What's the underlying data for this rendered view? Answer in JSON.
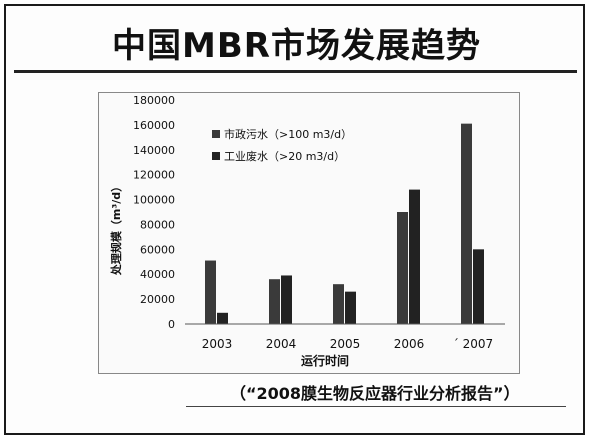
{
  "title": "中国MBR市场发展趋势",
  "source": "（“2008膜生物反应器行业分析报告”）",
  "chart_data": {
    "type": "bar",
    "title": "中国MBR市场发展趋势",
    "xlabel": "运行时间",
    "ylabel": "处理规模（m³/d）",
    "categories": [
      "2003",
      "2004",
      "2005",
      "2006",
      "2007"
    ],
    "category_labels": [
      "2003",
      "2004",
      "2005",
      "2006",
      "ˊ 2007"
    ],
    "ylim": [
      0,
      180000
    ],
    "yticks": [
      0,
      20000,
      40000,
      60000,
      80000,
      100000,
      120000,
      140000,
      160000,
      180000
    ],
    "grid": false,
    "legend": "top-left",
    "series": [
      {
        "name": "市政污水（>100 m3/d）",
        "values": [
          51000,
          36000,
          32000,
          90000,
          161000
        ],
        "color": "#3a3a3a"
      },
      {
        "name": "工业废水（>20 m3/d）",
        "values": [
          9000,
          39000,
          26000,
          108000,
          60000
        ],
        "color": "#222222"
      }
    ]
  }
}
